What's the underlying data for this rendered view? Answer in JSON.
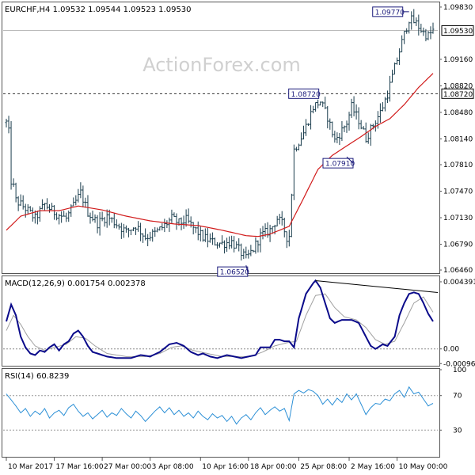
{
  "header": {
    "symbol_line": "EURCHF,H4  1.09532 1.09544 1.09523 1.09530"
  },
  "watermark": "ActionForex.com",
  "colors": {
    "background": "#ffffff",
    "price_bars": "#1a3d4d",
    "moving_average": "#d11a1a",
    "macd_line": "#0a0a8a",
    "signal_line": "#a0a0a0",
    "rsi_line": "#2b8fd6",
    "grid": "#555555",
    "callout_border": "#1a1a7a",
    "current_price_box": "#ffffff"
  },
  "chart_data": [
    {
      "type": "candlestick",
      "name": "price",
      "title": "EURCHF,H4",
      "ohlc_header": {
        "open": 1.09532,
        "high": 1.09544,
        "low": 1.09523,
        "close": 1.0953
      },
      "y_ticks": [
        "1.09830",
        "1.09160",
        "1.08820",
        "1.08480",
        "1.08140",
        "1.07810",
        "1.07470",
        "1.07130",
        "1.06790",
        "1.06460"
      ],
      "y_tick_values": [
        1.0983,
        1.0916,
        1.0882,
        1.0848,
        1.0814,
        1.0781,
        1.0747,
        1.0713,
        1.0679,
        1.0646
      ],
      "ylim": [
        1.0643,
        1.0988
      ],
      "current_price": 1.0953,
      "current_price_label": "1.09530",
      "horizontal_level": 1.0872,
      "horizontal_level_label": "1.08720",
      "callouts": [
        {
          "label": "1.09770",
          "value": 1.0977
        },
        {
          "label": "1.08720",
          "value": 1.0872
        },
        {
          "label": "1.07910",
          "value": 1.0791
        },
        {
          "label": "1.06520",
          "value": 1.0652
        }
      ],
      "price_keypoints": [
        [
          0,
          1.0835
        ],
        [
          1,
          1.0822
        ],
        [
          2,
          1.076
        ],
        [
          3,
          1.0752
        ],
        [
          4,
          1.0735
        ],
        [
          8,
          1.0725
        ],
        [
          12,
          1.0712
        ],
        [
          16,
          1.073
        ],
        [
          20,
          1.072
        ],
        [
          25,
          1.0712
        ],
        [
          28,
          1.0728
        ],
        [
          31,
          1.0745
        ],
        [
          34,
          1.072
        ],
        [
          38,
          1.0706
        ],
        [
          42,
          1.0715
        ],
        [
          46,
          1.0705
        ],
        [
          50,
          1.0695
        ],
        [
          54,
          1.0703
        ],
        [
          58,
          1.0688
        ],
        [
          62,
          1.0693
        ],
        [
          66,
          1.0703
        ],
        [
          69,
          1.0712
        ],
        [
          72,
          1.0706
        ],
        [
          75,
          1.071
        ],
        [
          78,
          1.07
        ],
        [
          82,
          1.0688
        ],
        [
          86,
          1.0682
        ],
        [
          90,
          1.068
        ],
        [
          94,
          1.0682
        ],
        [
          97,
          1.0672
        ],
        [
          100,
          1.066
        ],
        [
          103,
          1.0673
        ],
        [
          106,
          1.069
        ],
        [
          110,
          1.0697
        ],
        [
          113,
          1.0712
        ],
        [
          115,
          1.0705
        ],
        [
          117,
          1.0688
        ],
        [
          118,
          1.069
        ],
        [
          120,
          1.08
        ],
        [
          124,
          1.0822
        ],
        [
          128,
          1.0855
        ],
        [
          131,
          1.0862
        ],
        [
          134,
          1.0842
        ],
        [
          137,
          1.0812
        ],
        [
          140,
          1.0825
        ],
        [
          142,
          1.0835
        ],
        [
          144,
          1.0855
        ],
        [
          147,
          1.0838
        ],
        [
          150,
          1.0815
        ],
        [
          153,
          1.0832
        ],
        [
          156,
          1.0848
        ],
        [
          159,
          1.0872
        ],
        [
          162,
          1.0905
        ],
        [
          165,
          1.0938
        ],
        [
          168,
          1.0968
        ],
        [
          171,
          1.0962
        ],
        [
          174,
          1.095
        ],
        [
          176,
          1.0946
        ],
        [
          178,
          1.0953
        ]
      ],
      "ma_keypoints": [
        [
          0,
          1.0697
        ],
        [
          6,
          1.0715
        ],
        [
          14,
          1.0722
        ],
        [
          22,
          1.0722
        ],
        [
          30,
          1.0728
        ],
        [
          40,
          1.0723
        ],
        [
          50,
          1.0715
        ],
        [
          60,
          1.0709
        ],
        [
          70,
          1.0705
        ],
        [
          80,
          1.0703
        ],
        [
          90,
          1.0697
        ],
        [
          100,
          1.069
        ],
        [
          105,
          1.0689
        ],
        [
          110,
          1.0692
        ],
        [
          118,
          1.0702
        ],
        [
          124,
          1.0738
        ],
        [
          130,
          1.0775
        ],
        [
          136,
          1.0793
        ],
        [
          142,
          1.0805
        ],
        [
          148,
          1.0817
        ],
        [
          154,
          1.083
        ],
        [
          160,
          1.084
        ],
        [
          166,
          1.0858
        ],
        [
          172,
          1.088
        ],
        [
          178,
          1.0898
        ]
      ],
      "bar_count": 179
    },
    {
      "type": "line",
      "name": "macd",
      "title": "MACD(12,26,9) 0.001754 0.002378",
      "y_ticks": [
        "0.004391",
        "0.00",
        "-0.000961"
      ],
      "y_tick_values": [
        0.004391,
        0.0,
        -0.000961
      ],
      "ylim": [
        -0.00105,
        0.0047
      ],
      "trendline": [
        [
          129,
          0.00447
        ],
        [
          178,
          0.00369
        ]
      ],
      "macd_keypoints": [
        [
          0,
          0.0018
        ],
        [
          2,
          0.0029
        ],
        [
          4,
          0.0022
        ],
        [
          6,
          0.0008
        ],
        [
          8,
          0.0001
        ],
        [
          10,
          -0.0003
        ],
        [
          12,
          -0.0004
        ],
        [
          14,
          -0.0001
        ],
        [
          16,
          -0.0002
        ],
        [
          18,
          0.0001
        ],
        [
          20,
          0.0003
        ],
        [
          22,
          -0.0001
        ],
        [
          24,
          0.0003
        ],
        [
          26,
          0.0005
        ],
        [
          28,
          0.001
        ],
        [
          30,
          0.0012
        ],
        [
          32,
          0.0008
        ],
        [
          34,
          0.0002
        ],
        [
          36,
          -0.0002
        ],
        [
          38,
          -0.0003
        ],
        [
          42,
          -0.0005
        ],
        [
          46,
          -0.0006
        ],
        [
          52,
          -0.0006
        ],
        [
          56,
          -0.0004
        ],
        [
          60,
          -0.0005
        ],
        [
          64,
          -0.0002
        ],
        [
          68,
          0.0003
        ],
        [
          71,
          0.0004
        ],
        [
          74,
          0.0002
        ],
        [
          77,
          -0.0002
        ],
        [
          80,
          -0.0004
        ],
        [
          82,
          -0.0003
        ],
        [
          85,
          -0.0005
        ],
        [
          88,
          -0.0006
        ],
        [
          92,
          -0.0004
        ],
        [
          95,
          -0.0005
        ],
        [
          98,
          -0.0006
        ],
        [
          101,
          -0.0005
        ],
        [
          104,
          -0.0004
        ],
        [
          106,
          0.0001
        ],
        [
          110,
          0.0001
        ],
        [
          112,
          0.0006
        ],
        [
          114,
          0.0006
        ],
        [
          116,
          0.0005
        ],
        [
          118,
          0.0005
        ],
        [
          120,
          0.0001
        ],
        [
          122,
          0.002
        ],
        [
          125,
          0.0036
        ],
        [
          128,
          0.0043
        ],
        [
          129,
          0.00447
        ],
        [
          131,
          0.004
        ],
        [
          133,
          0.003
        ],
        [
          135,
          0.002
        ],
        [
          137,
          0.0017
        ],
        [
          140,
          0.0019
        ],
        [
          144,
          0.0019
        ],
        [
          147,
          0.0017
        ],
        [
          150,
          0.0008
        ],
        [
          152,
          0.0002
        ],
        [
          154,
          0.0
        ],
        [
          157,
          0.0003
        ],
        [
          159,
          0.0002
        ],
        [
          162,
          0.0008
        ],
        [
          164,
          0.0022
        ],
        [
          166,
          0.003
        ],
        [
          168,
          0.0036
        ],
        [
          170,
          0.0037
        ],
        [
          172,
          0.0036
        ],
        [
          174,
          0.003
        ],
        [
          176,
          0.0023
        ],
        [
          178,
          0.0018
        ]
      ],
      "signal_keypoints": [
        [
          0,
          0.0012
        ],
        [
          3,
          0.0022
        ],
        [
          6,
          0.0016
        ],
        [
          9,
          0.0008
        ],
        [
          12,
          0.0002
        ],
        [
          16,
          -0.0001
        ],
        [
          20,
          0.0001
        ],
        [
          25,
          0.0003
        ],
        [
          29,
          0.0008
        ],
        [
          33,
          0.0007
        ],
        [
          37,
          0.0002
        ],
        [
          42,
          -0.0003
        ],
        [
          50,
          -0.0005
        ],
        [
          58,
          -0.0005
        ],
        [
          64,
          -0.0003
        ],
        [
          69,
          0.0001
        ],
        [
          73,
          0.0002
        ],
        [
          78,
          -0.0001
        ],
        [
          84,
          -0.0003
        ],
        [
          90,
          -0.0005
        ],
        [
          96,
          -0.0005
        ],
        [
          102,
          -0.0005
        ],
        [
          107,
          -0.0002
        ],
        [
          112,
          0.0002
        ],
        [
          117,
          0.0004
        ],
        [
          121,
          0.0005
        ],
        [
          125,
          0.0022
        ],
        [
          129,
          0.0035
        ],
        [
          133,
          0.0036
        ],
        [
          137,
          0.0027
        ],
        [
          141,
          0.0021
        ],
        [
          146,
          0.0019
        ],
        [
          150,
          0.0014
        ],
        [
          154,
          0.0006
        ],
        [
          158,
          0.0003
        ],
        [
          162,
          0.0005
        ],
        [
          166,
          0.0017
        ],
        [
          170,
          0.003
        ],
        [
          174,
          0.0034
        ],
        [
          178,
          0.0024
        ]
      ]
    },
    {
      "type": "line",
      "name": "rsi",
      "title": "RSI(14) 60.8239",
      "y_ticks": [
        "100",
        "70",
        "30",
        "0"
      ],
      "y_tick_values": [
        100,
        70,
        30,
        0
      ],
      "levels": [
        70,
        30
      ],
      "ylim": [
        0,
        100
      ],
      "rsi_keypoints": [
        [
          0,
          72
        ],
        [
          2,
          65
        ],
        [
          4,
          58
        ],
        [
          6,
          50
        ],
        [
          8,
          55
        ],
        [
          10,
          46
        ],
        [
          12,
          52
        ],
        [
          14,
          48
        ],
        [
          16,
          55
        ],
        [
          18,
          44
        ],
        [
          20,
          50
        ],
        [
          22,
          53
        ],
        [
          24,
          47
        ],
        [
          26,
          56
        ],
        [
          28,
          60
        ],
        [
          30,
          52
        ],
        [
          32,
          46
        ],
        [
          34,
          50
        ],
        [
          36,
          43
        ],
        [
          38,
          48
        ],
        [
          40,
          53
        ],
        [
          42,
          45
        ],
        [
          44,
          50
        ],
        [
          46,
          47
        ],
        [
          48,
          55
        ],
        [
          50,
          49
        ],
        [
          52,
          44
        ],
        [
          54,
          52
        ],
        [
          56,
          47
        ],
        [
          58,
          40
        ],
        [
          60,
          46
        ],
        [
          62,
          52
        ],
        [
          64,
          57
        ],
        [
          66,
          50
        ],
        [
          68,
          56
        ],
        [
          70,
          48
        ],
        [
          72,
          53
        ],
        [
          74,
          46
        ],
        [
          76,
          50
        ],
        [
          78,
          44
        ],
        [
          80,
          52
        ],
        [
          82,
          46
        ],
        [
          84,
          42
        ],
        [
          86,
          49
        ],
        [
          88,
          44
        ],
        [
          90,
          47
        ],
        [
          92,
          40
        ],
        [
          94,
          46
        ],
        [
          96,
          37
        ],
        [
          98,
          44
        ],
        [
          100,
          48
        ],
        [
          102,
          42
        ],
        [
          104,
          50
        ],
        [
          106,
          56
        ],
        [
          108,
          48
        ],
        [
          110,
          53
        ],
        [
          112,
          57
        ],
        [
          114,
          52
        ],
        [
          116,
          55
        ],
        [
          118,
          41
        ],
        [
          120,
          72
        ],
        [
          122,
          76
        ],
        [
          124,
          73
        ],
        [
          126,
          77
        ],
        [
          128,
          75
        ],
        [
          130,
          70
        ],
        [
          132,
          60
        ],
        [
          134,
          66
        ],
        [
          136,
          59
        ],
        [
          138,
          67
        ],
        [
          140,
          62
        ],
        [
          142,
          72
        ],
        [
          144,
          65
        ],
        [
          146,
          72
        ],
        [
          148,
          60
        ],
        [
          150,
          48
        ],
        [
          152,
          56
        ],
        [
          154,
          61
        ],
        [
          156,
          60
        ],
        [
          158,
          66
        ],
        [
          160,
          64
        ],
        [
          162,
          72
        ],
        [
          164,
          76
        ],
        [
          166,
          68
        ],
        [
          168,
          80
        ],
        [
          170,
          72
        ],
        [
          172,
          74
        ],
        [
          174,
          66
        ],
        [
          176,
          58
        ],
        [
          178,
          61
        ]
      ]
    }
  ],
  "x_axis": {
    "labels": [
      "10 Mar 2017",
      "17 Mar 16:00",
      "27 Mar 00:00",
      "3 Apr 08:00",
      "10 Apr 16:00",
      "18 Apr 00:00",
      "25 Apr 08:00",
      "2 May 16:00",
      "10 May 00:00"
    ],
    "label_bar_index": [
      0,
      20,
      40,
      60,
      81,
      101,
      122,
      143,
      163
    ]
  }
}
